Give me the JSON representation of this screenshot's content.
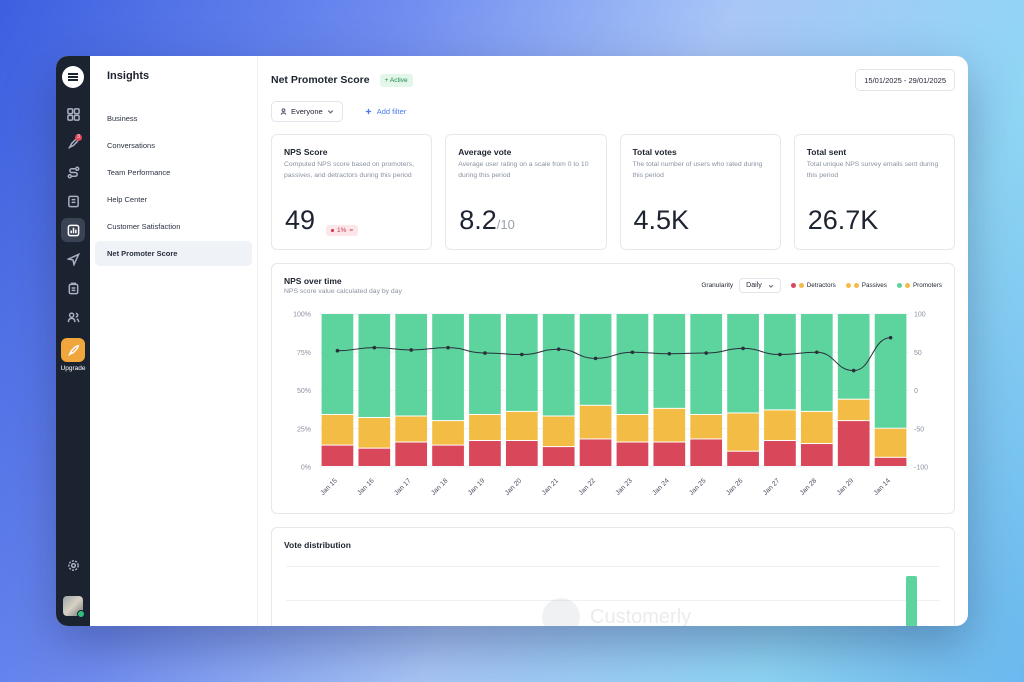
{
  "sidebar": {
    "section_title": "Insights",
    "items": [
      {
        "label": "Business"
      },
      {
        "label": "Conversations"
      },
      {
        "label": "Team Performance"
      },
      {
        "label": "Help Center"
      },
      {
        "label": "Customer Satisfaction"
      },
      {
        "label": "Net Promoter Score",
        "active": true
      }
    ]
  },
  "rail": {
    "icons": [
      "grid-icon",
      "rocket-icon",
      "route-icon",
      "book-icon",
      "chart-icon",
      "send-icon",
      "clipboard-icon",
      "users-icon"
    ],
    "badge": "3",
    "upgrade_label": "Upgrade"
  },
  "header": {
    "title": "Net Promoter Score",
    "status": "Active",
    "date_range": "15/01/2025 - 29/01/2025"
  },
  "filters": {
    "audience": "Everyone",
    "add_filter": "Add filter"
  },
  "cards": {
    "nps": {
      "title": "NPS Score",
      "desc": "Computed NPS score based on promoters, passives, and detractors during this period",
      "value": "49",
      "delta": "1%"
    },
    "avg": {
      "title": "Average vote",
      "desc": "Average user rating on a scale from 0 to 10 during this period",
      "value": "8.2",
      "unit": "/10"
    },
    "votes": {
      "title": "Total votes",
      "desc": "The total number of users who rated during this period",
      "value": "4.5K"
    },
    "sent": {
      "title": "Total sent",
      "desc": "Total unique NPS survey emails sent during this period",
      "value": "26.7K"
    }
  },
  "nps_panel": {
    "title": "NPS over time",
    "subtitle": "NPS score value calculated day by day",
    "granularity_label": "Granularity",
    "granularity_value": "Daily"
  },
  "dist_panel": {
    "title": "Vote distribution",
    "watermark": "Customerly"
  },
  "colors": {
    "detractors": "#d9475a",
    "passives": "#f3bd45",
    "promoters": "#5dd39e",
    "line": "#2a2f3a"
  },
  "chart_data": {
    "type": "bar",
    "stacked": true,
    "categories": [
      "Jan 15",
      "Jan 16",
      "Jan 17",
      "Jan 18",
      "Jan 19",
      "Jan 20",
      "Jan 21",
      "Jan 22",
      "Jan 23",
      "Jan 24",
      "Jan 25",
      "Jan 26",
      "Jan 27",
      "Jan 28",
      "Jan 29",
      "Jan 14"
    ],
    "series": [
      {
        "name": "Detractors",
        "values": [
          14,
          12,
          16,
          14,
          17,
          17,
          13,
          18,
          16,
          16,
          18,
          10,
          17,
          15,
          30,
          6
        ]
      },
      {
        "name": "Passives",
        "values": [
          20,
          20,
          17,
          16,
          17,
          19,
          20,
          22,
          18,
          22,
          16,
          25,
          20,
          21,
          14,
          19
        ]
      },
      {
        "name": "Promoters",
        "values": [
          66,
          68,
          67,
          70,
          66,
          64,
          67,
          60,
          66,
          62,
          66,
          65,
          63,
          64,
          56,
          75
        ]
      }
    ],
    "line": {
      "values": [
        52,
        56,
        53,
        56,
        49,
        47,
        54,
        42,
        50,
        48,
        49,
        55,
        47,
        50,
        26,
        69
      ]
    },
    "y_left": {
      "ticks": [
        "0%",
        "25%",
        "50%",
        "75%",
        "100%"
      ],
      "range": [
        0,
        100
      ]
    },
    "y_right": {
      "ticks": [
        "-100",
        "-50",
        "0",
        "50",
        "100"
      ],
      "range": [
        -100,
        100
      ]
    },
    "legend": "top-right"
  }
}
